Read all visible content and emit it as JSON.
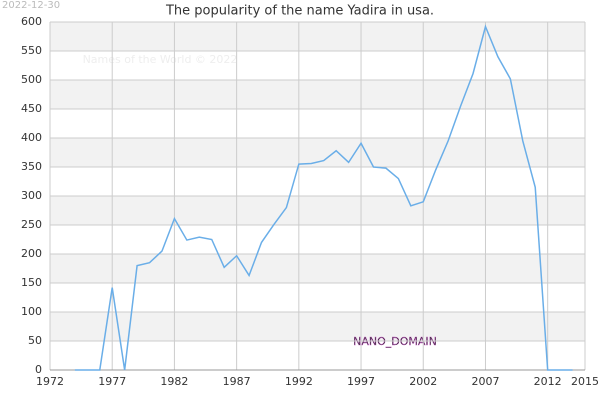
{
  "chart_data": {
    "type": "line",
    "title": "The popularity of the name Yadira in usa.",
    "date": "2022-12-30",
    "watermark": "Names of the World © 2022",
    "domain_label": "NANO_DOMAIN",
    "x": [
      1974,
      1975,
      1976,
      1977,
      1978,
      1979,
      1980,
      1981,
      1982,
      1983,
      1984,
      1985,
      1986,
      1987,
      1988,
      1989,
      1990,
      1991,
      1992,
      1993,
      1994,
      1995,
      1996,
      1997,
      1998,
      1999,
      2000,
      2001,
      2002,
      2003,
      2004,
      2005,
      2006,
      2007,
      2008,
      2009,
      2010,
      2011,
      2012,
      2013,
      2014
    ],
    "series": [
      {
        "name": "Yadira",
        "color": "#6aaee8",
        "values": [
          0,
          0,
          0,
          142,
          0,
          180,
          185,
          205,
          261,
          224,
          229,
          225,
          177,
          197,
          163,
          220,
          251,
          280,
          355,
          356,
          361,
          378,
          358,
          391,
          350,
          348,
          330,
          283,
          290,
          345,
          395,
          455,
          511,
          592,
          540,
          502,
          395,
          315,
          0,
          0,
          0
        ]
      }
    ],
    "xlim": [
      1972,
      2015
    ],
    "xticks": [
      1972,
      1977,
      1982,
      1987,
      1992,
      1997,
      2002,
      2007,
      2012,
      2015
    ],
    "ylim": [
      0,
      600
    ],
    "yticks": [
      0,
      50,
      100,
      150,
      200,
      250,
      300,
      350,
      400,
      450,
      500,
      550,
      600
    ],
    "grid": true
  }
}
